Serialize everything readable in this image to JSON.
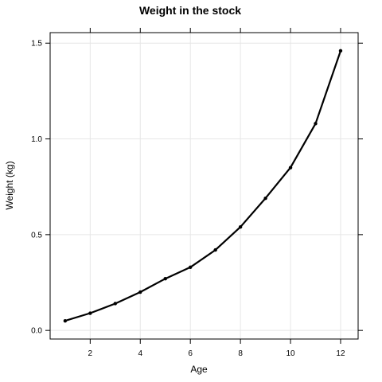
{
  "chart_data": {
    "type": "line",
    "title": "Weight in the stock",
    "xlabel": "Age",
    "ylabel": "Weight (kg)",
    "xlim": [
      0.4,
      12.7
    ],
    "ylim": [
      -0.045,
      1.555
    ],
    "x_ticks": [
      2,
      4,
      6,
      8,
      10,
      12
    ],
    "y_ticks": [
      0.0,
      0.5,
      1.0,
      1.5
    ],
    "x_tick_labels": [
      "2",
      "4",
      "6",
      "8",
      "10",
      "12"
    ],
    "y_tick_labels": [
      "0.0",
      "0.5",
      "1.0",
      "1.5"
    ],
    "grid": true,
    "series": [
      {
        "x": [
          1,
          2,
          3,
          4,
          5,
          6,
          7,
          8,
          9,
          10,
          11,
          12
        ],
        "values": [
          0.05,
          0.09,
          0.14,
          0.2,
          0.27,
          0.33,
          0.42,
          0.54,
          0.69,
          0.85,
          1.08,
          1.46
        ]
      }
    ]
  }
}
